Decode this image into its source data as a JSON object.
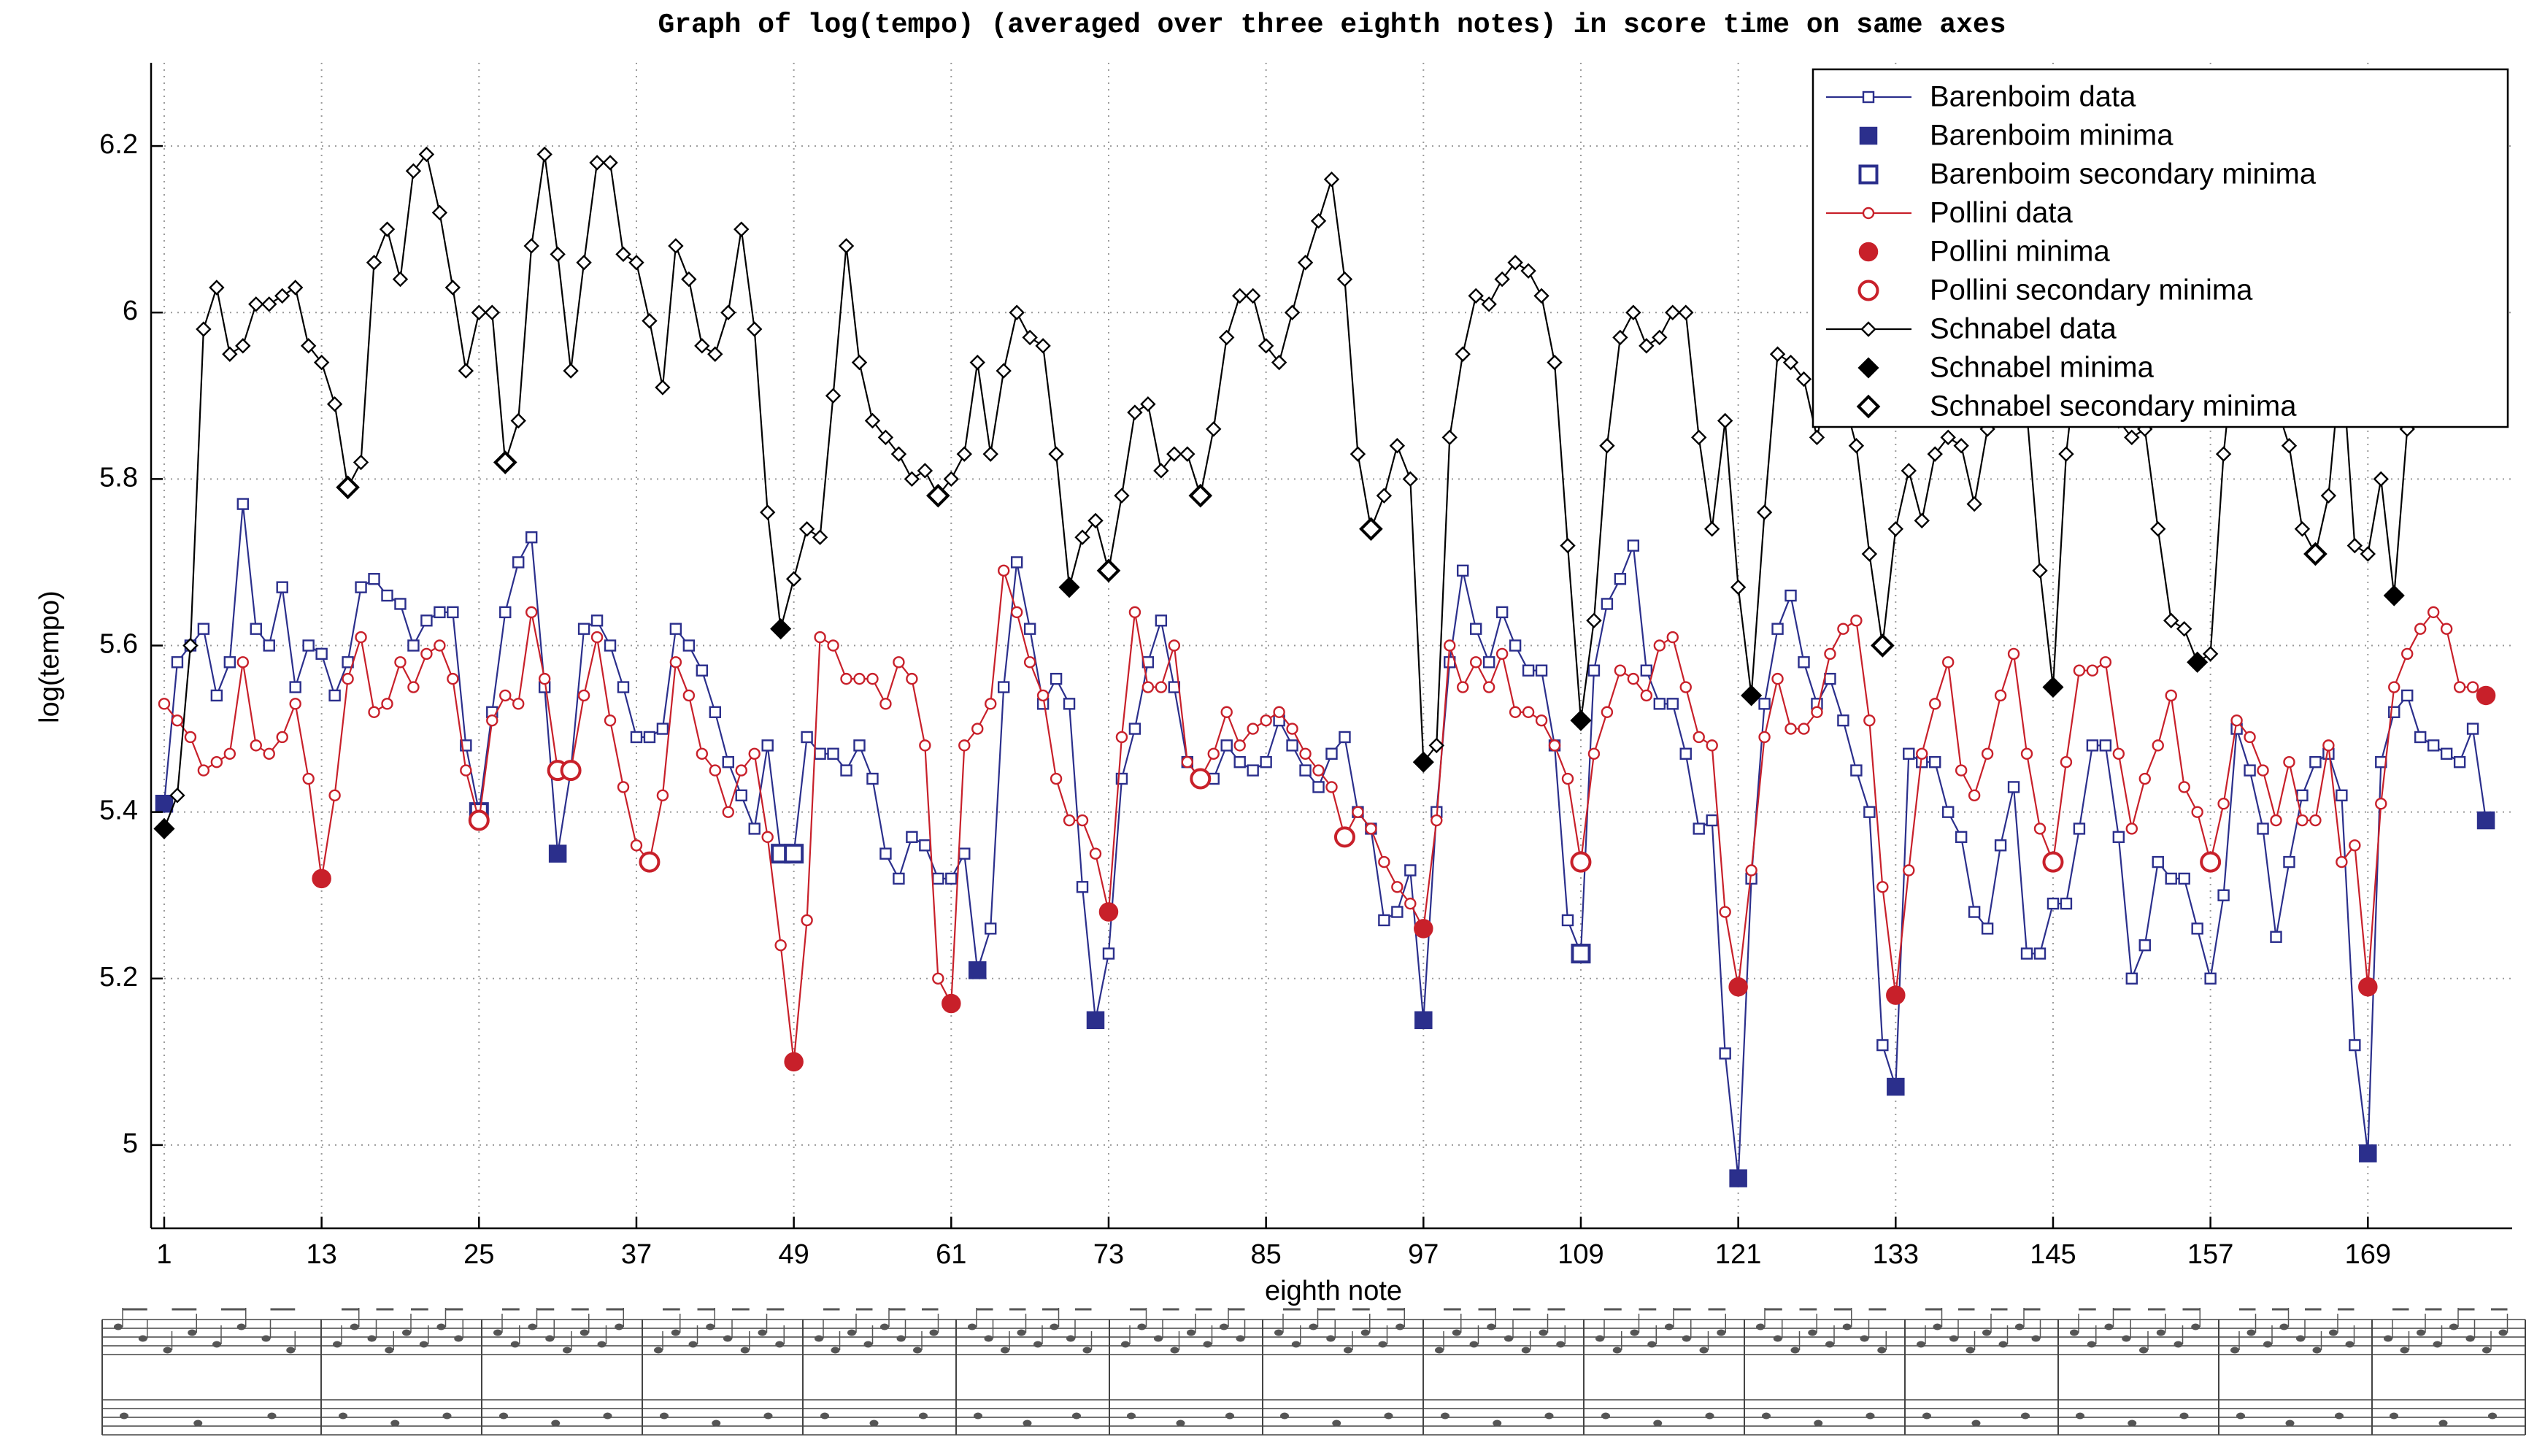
{
  "chart_data": {
    "type": "line",
    "title": "Graph of log(tempo) (averaged over three eighth notes) in score time on same axes",
    "x_label": "eighth note",
    "y_label": "log(tempo)",
    "xlim": [
      0,
      180
    ],
    "ylim": [
      4.9,
      6.3
    ],
    "xticks": [
      1,
      13,
      25,
      37,
      49,
      61,
      73,
      85,
      97,
      109,
      121,
      133,
      145,
      157,
      169
    ],
    "yticks": [
      5,
      5.2,
      5.4,
      5.6,
      5.8,
      6,
      6.2
    ],
    "grid": true,
    "legend": "upper right",
    "x": [
      1,
      2,
      3,
      4,
      5,
      6,
      7,
      8,
      9,
      10,
      11,
      12,
      13,
      14,
      15,
      16,
      17,
      18,
      19,
      20,
      21,
      22,
      23,
      24,
      25,
      26,
      27,
      28,
      29,
      30,
      31,
      32,
      33,
      34,
      35,
      36,
      37,
      38,
      39,
      40,
      41,
      42,
      43,
      44,
      45,
      46,
      47,
      48,
      49,
      50,
      51,
      52,
      53,
      54,
      55,
      56,
      57,
      58,
      59,
      60,
      61,
      62,
      63,
      64,
      65,
      66,
      67,
      68,
      69,
      70,
      71,
      72,
      73,
      74,
      75,
      76,
      77,
      78,
      79,
      80,
      81,
      82,
      83,
      84,
      85,
      86,
      87,
      88,
      89,
      90,
      91,
      92,
      93,
      94,
      95,
      96,
      97,
      98,
      99,
      100,
      101,
      102,
      103,
      104,
      105,
      106,
      107,
      108,
      109,
      110,
      111,
      112,
      113,
      114,
      115,
      116,
      117,
      118,
      119,
      120,
      121,
      122,
      123,
      124,
      125,
      126,
      127,
      128,
      129,
      130,
      131,
      132,
      133,
      134,
      135,
      136,
      137,
      138,
      139,
      140,
      141,
      142,
      143,
      144,
      145,
      146,
      147,
      148,
      149,
      150,
      151,
      152,
      153,
      154,
      155,
      156,
      157,
      158,
      159,
      160,
      161,
      162,
      163,
      164,
      165,
      166,
      167,
      168,
      169,
      170,
      171,
      172,
      173,
      174,
      175,
      176,
      177,
      178
    ],
    "series": [
      {
        "name": "Barenboim data",
        "color": "#2b2f8c",
        "marker": "square",
        "filled": false,
        "line": true,
        "values": [
          5.41,
          5.58,
          5.6,
          5.62,
          5.54,
          5.58,
          5.77,
          5.62,
          5.6,
          5.67,
          5.55,
          5.6,
          5.59,
          5.54,
          5.58,
          5.67,
          5.68,
          5.66,
          5.65,
          5.6,
          5.63,
          5.64,
          5.64,
          5.48,
          5.4,
          5.52,
          5.64,
          5.7,
          5.73,
          5.55,
          5.35,
          5.45,
          5.62,
          5.63,
          5.6,
          5.55,
          5.49,
          5.49,
          5.5,
          5.62,
          5.6,
          5.57,
          5.52,
          5.46,
          5.42,
          5.38,
          5.48,
          5.35,
          5.35,
          5.49,
          5.47,
          5.47,
          5.45,
          5.48,
          5.44,
          5.35,
          5.32,
          5.37,
          5.36,
          5.32,
          5.32,
          5.35,
          5.21,
          5.26,
          5.55,
          5.7,
          5.62,
          5.53,
          5.56,
          5.53,
          5.31,
          5.15,
          5.23,
          5.44,
          5.5,
          5.58,
          5.63,
          5.55,
          5.46,
          5.44,
          5.44,
          5.48,
          5.46,
          5.45,
          5.46,
          5.51,
          5.48,
          5.45,
          5.43,
          5.47,
          5.49,
          5.4,
          5.38,
          5.27,
          5.28,
          5.33,
          5.15,
          5.4,
          5.58,
          5.69,
          5.62,
          5.58,
          5.64,
          5.6,
          5.57,
          5.57,
          5.48,
          5.27,
          5.23,
          5.57,
          5.65,
          5.68,
          5.72,
          5.57,
          5.53,
          5.53,
          5.47,
          5.38,
          5.39,
          5.11,
          4.96,
          5.32,
          5.53,
          5.62,
          5.66,
          5.58,
          5.53,
          5.56,
          5.51,
          5.45,
          5.4,
          5.12,
          5.07,
          5.47,
          5.46,
          5.46,
          5.4,
          5.37,
          5.28,
          5.26,
          5.36,
          5.43,
          5.23,
          5.23,
          5.29,
          5.29,
          5.38,
          5.48,
          5.48,
          5.37,
          5.2,
          5.24,
          5.34,
          5.32,
          5.32,
          5.26,
          5.2,
          5.3,
          5.5,
          5.45,
          5.38,
          5.25,
          5.34,
          5.42,
          5.46,
          5.47,
          5.42,
          5.12,
          4.99,
          5.46,
          5.52,
          5.54,
          5.49,
          5.48,
          5.47,
          5.46,
          5.5,
          5.39
        ]
      },
      {
        "name": "Barenboim minima",
        "color": "#2b2f8c",
        "marker": "square",
        "filled": true,
        "line": false,
        "x": [
          1,
          31,
          63,
          72,
          97,
          121,
          133,
          169,
          178
        ],
        "values": [
          5.41,
          5.35,
          5.21,
          5.15,
          5.15,
          4.96,
          5.07,
          4.99,
          5.39
        ]
      },
      {
        "name": "Barenboim secondary minima",
        "color": "#2b2f8c",
        "marker": "square",
        "filled": false,
        "line": false,
        "x": [
          25,
          48,
          49,
          109
        ],
        "values": [
          5.4,
          5.35,
          5.35,
          5.23
        ]
      },
      {
        "name": "Pollini data",
        "color": "#c8202a",
        "marker": "circle",
        "filled": false,
        "line": true,
        "values": [
          5.53,
          5.51,
          5.49,
          5.45,
          5.46,
          5.47,
          5.58,
          5.48,
          5.47,
          5.49,
          5.53,
          5.44,
          5.32,
          5.42,
          5.56,
          5.61,
          5.52,
          5.53,
          5.58,
          5.55,
          5.59,
          5.6,
          5.56,
          5.45,
          5.39,
          5.51,
          5.54,
          5.53,
          5.64,
          5.56,
          5.45,
          5.45,
          5.54,
          5.61,
          5.51,
          5.43,
          5.36,
          5.34,
          5.42,
          5.58,
          5.54,
          5.47,
          5.45,
          5.4,
          5.45,
          5.47,
          5.37,
          5.24,
          5.1,
          5.27,
          5.61,
          5.6,
          5.56,
          5.56,
          5.56,
          5.53,
          5.58,
          5.56,
          5.48,
          5.2,
          5.17,
          5.48,
          5.5,
          5.53,
          5.69,
          5.64,
          5.58,
          5.54,
          5.44,
          5.39,
          5.39,
          5.35,
          5.28,
          5.49,
          5.64,
          5.55,
          5.55,
          5.6,
          5.46,
          5.44,
          5.47,
          5.52,
          5.48,
          5.5,
          5.51,
          5.52,
          5.5,
          5.47,
          5.45,
          5.43,
          5.37,
          5.4,
          5.38,
          5.34,
          5.31,
          5.29,
          5.26,
          5.39,
          5.6,
          5.55,
          5.58,
          5.55,
          5.59,
          5.52,
          5.52,
          5.51,
          5.48,
          5.44,
          5.34,
          5.47,
          5.52,
          5.57,
          5.56,
          5.54,
          5.6,
          5.61,
          5.55,
          5.49,
          5.48,
          5.28,
          5.19,
          5.33,
          5.49,
          5.56,
          5.5,
          5.5,
          5.52,
          5.59,
          5.62,
          5.63,
          5.51,
          5.31,
          5.18,
          5.33,
          5.47,
          5.53,
          5.58,
          5.45,
          5.42,
          5.47,
          5.54,
          5.59,
          5.47,
          5.38,
          5.34,
          5.46,
          5.57,
          5.57,
          5.58,
          5.47,
          5.38,
          5.44,
          5.48,
          5.54,
          5.43,
          5.4,
          5.34,
          5.41,
          5.51,
          5.49,
          5.45,
          5.39,
          5.46,
          5.39,
          5.39,
          5.48,
          5.34,
          5.36,
          5.19,
          5.41,
          5.55,
          5.59,
          5.62,
          5.64,
          5.62,
          5.55,
          5.55,
          5.54
        ]
      },
      {
        "name": "Pollini minima",
        "color": "#c8202a",
        "marker": "circle",
        "filled": true,
        "line": false,
        "x": [
          13,
          49,
          61,
          73,
          97,
          121,
          133,
          169,
          178
        ],
        "values": [
          5.32,
          5.1,
          5.17,
          5.28,
          5.26,
          5.19,
          5.18,
          5.19,
          5.54
        ]
      },
      {
        "name": "Pollini secondary minima",
        "color": "#c8202a",
        "marker": "circle",
        "filled": false,
        "line": false,
        "x": [
          25,
          31,
          32,
          38,
          80,
          91,
          109,
          145,
          157
        ],
        "values": [
          5.39,
          5.45,
          5.45,
          5.34,
          5.44,
          5.37,
          5.34,
          5.34,
          5.34
        ]
      },
      {
        "name": "Schnabel data",
        "color": "#000000",
        "marker": "diamond",
        "filled": false,
        "line": true,
        "values": [
          5.38,
          5.42,
          5.6,
          5.98,
          6.03,
          5.95,
          5.96,
          6.01,
          6.01,
          6.02,
          6.03,
          5.96,
          5.94,
          5.89,
          5.79,
          5.82,
          6.06,
          6.1,
          6.04,
          6.17,
          6.19,
          6.12,
          6.03,
          5.93,
          6.0,
          6.0,
          5.82,
          5.87,
          6.08,
          6.19,
          6.07,
          5.93,
          6.06,
          6.18,
          6.18,
          6.07,
          6.06,
          5.99,
          5.91,
          6.08,
          6.04,
          5.96,
          5.95,
          6.0,
          6.1,
          5.98,
          5.76,
          5.62,
          5.68,
          5.74,
          5.73,
          5.9,
          6.08,
          5.94,
          5.87,
          5.85,
          5.83,
          5.8,
          5.81,
          5.78,
          5.8,
          5.83,
          5.94,
          5.83,
          5.93,
          6.0,
          5.97,
          5.96,
          5.83,
          5.67,
          5.73,
          5.75,
          5.69,
          5.78,
          5.88,
          5.89,
          5.81,
          5.83,
          5.83,
          5.78,
          5.86,
          5.97,
          6.02,
          6.02,
          5.96,
          5.94,
          6.0,
          6.06,
          6.11,
          6.16,
          6.04,
          5.83,
          5.74,
          5.78,
          5.84,
          5.8,
          5.46,
          5.48,
          5.85,
          5.95,
          6.02,
          6.01,
          6.04,
          6.06,
          6.05,
          6.02,
          5.94,
          5.72,
          5.51,
          5.63,
          5.84,
          5.97,
          6.0,
          5.96,
          5.97,
          6.0,
          6.0,
          5.85,
          5.74,
          5.87,
          5.67,
          5.54,
          5.76,
          5.95,
          5.94,
          5.92,
          5.85,
          5.92,
          5.9,
          5.84,
          5.71,
          5.6,
          5.74,
          5.81,
          5.75,
          5.83,
          5.85,
          5.84,
          5.77,
          5.86,
          5.92,
          5.9,
          5.88,
          5.69,
          5.55,
          5.83,
          5.97,
          6.0,
          5.93,
          5.87,
          5.85,
          5.86,
          5.74,
          5.63,
          5.62,
          5.58,
          5.59,
          5.83,
          5.98,
          5.96,
          5.9,
          5.89,
          5.84,
          5.74,
          5.71,
          5.78,
          5.95,
          5.72,
          5.71,
          5.8,
          5.66,
          5.86,
          5.98,
          6.04,
          6.08,
          6.1,
          6.12,
          6.14
        ]
      },
      {
        "name": "Schnabel minima",
        "color": "#000000",
        "marker": "diamond",
        "filled": true,
        "line": false,
        "x": [
          1,
          48,
          70,
          97,
          109,
          122,
          145,
          156,
          171
        ],
        "values": [
          5.38,
          5.62,
          5.67,
          5.46,
          5.51,
          5.54,
          5.55,
          5.58,
          5.66
        ]
      },
      {
        "name": "Schnabel secondary minima",
        "color": "#000000",
        "marker": "diamond",
        "filled": false,
        "line": false,
        "x": [
          15,
          27,
          60,
          73,
          80,
          93,
          132,
          165
        ],
        "values": [
          5.79,
          5.82,
          5.78,
          5.69,
          5.78,
          5.74,
          5.6,
          5.71
        ]
      }
    ]
  }
}
